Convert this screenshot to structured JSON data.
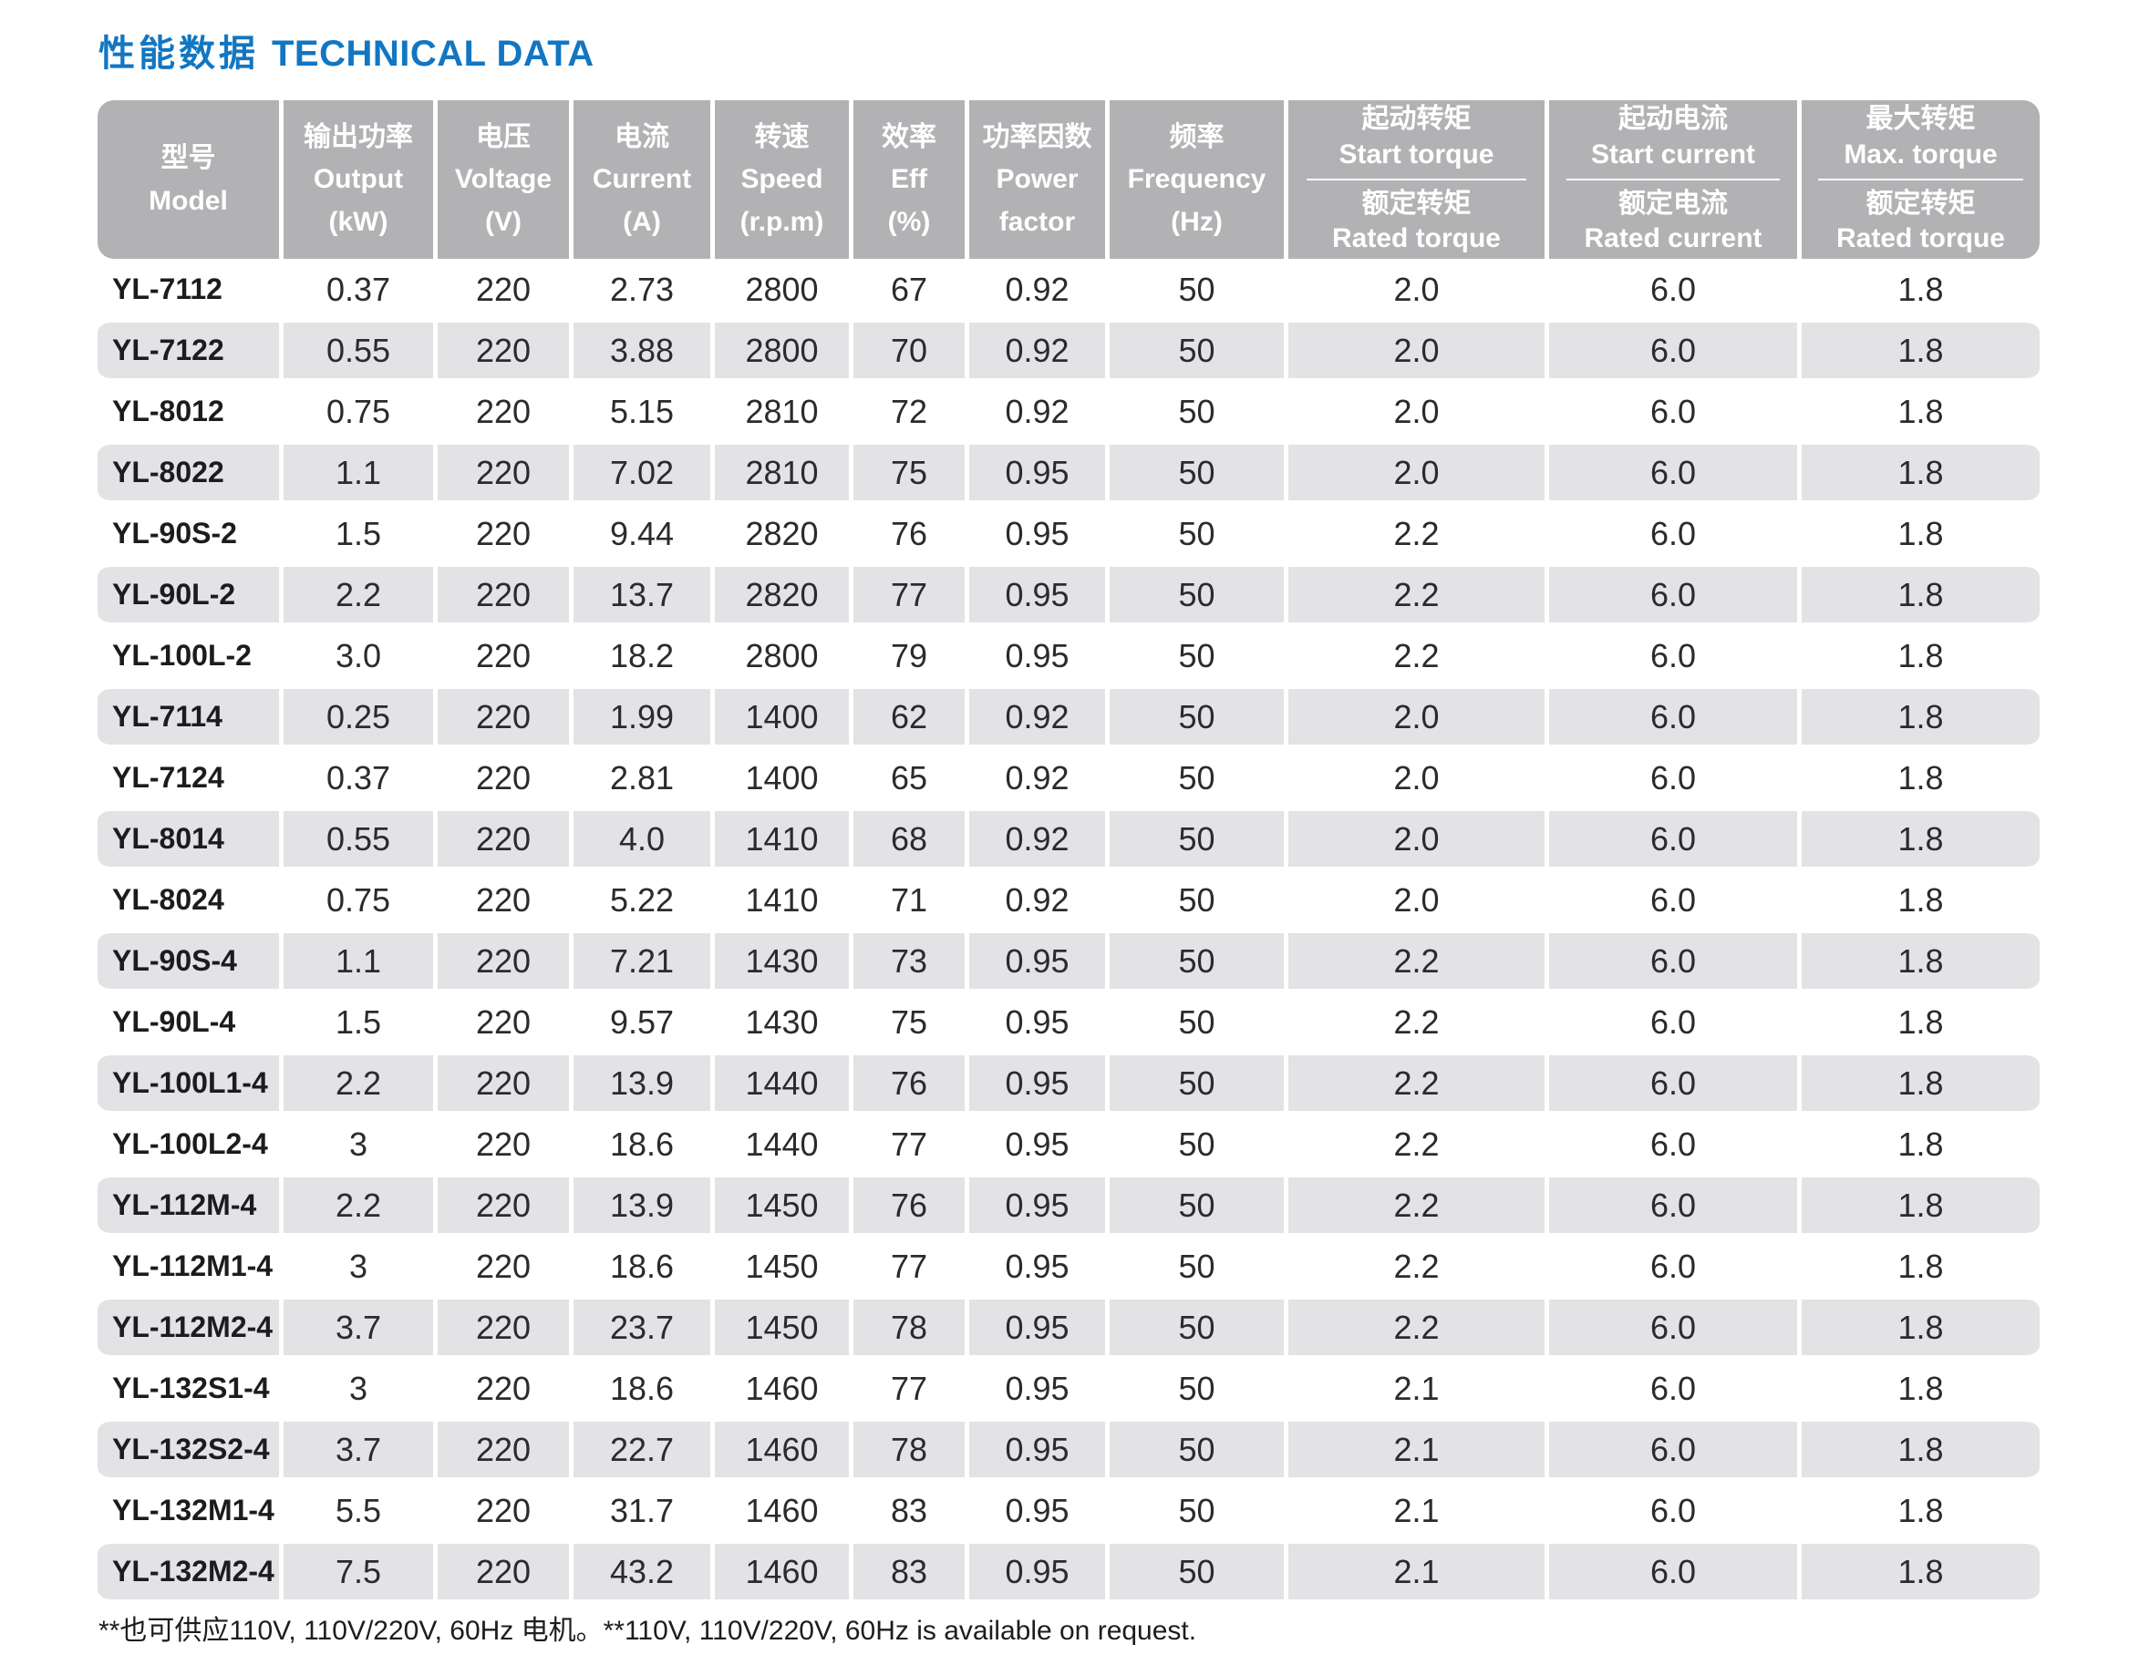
{
  "page_title": {
    "zh": "性能数据",
    "en": "TECHNICAL DATA"
  },
  "colors": {
    "accent_blue": "#1276c2",
    "header_gray": "#b2b2b5",
    "stripe_gray": "#e3e3e5"
  },
  "table": {
    "columns": [
      {
        "lines": [
          "型号",
          "Model"
        ]
      },
      {
        "lines": [
          "输出功率",
          "Output",
          "(kW)"
        ]
      },
      {
        "lines": [
          "电压",
          "Voltage",
          "(V)"
        ]
      },
      {
        "lines": [
          "电流",
          "Current",
          "(A)"
        ]
      },
      {
        "lines": [
          "转速",
          "Speed",
          "(r.p.m)"
        ]
      },
      {
        "lines": [
          "效率",
          "Eff",
          "(%)"
        ]
      },
      {
        "lines": [
          "功率因数",
          "Power",
          "factor"
        ]
      },
      {
        "lines": [
          "频率",
          "Frequency",
          "(Hz)"
        ]
      },
      {
        "top": [
          "起动转矩",
          "Start torque"
        ],
        "bottom": [
          "额定转矩",
          "Rated torque"
        ]
      },
      {
        "top": [
          "起动电流",
          "Start current"
        ],
        "bottom": [
          "额定电流",
          "Rated current"
        ]
      },
      {
        "top": [
          "最大转矩",
          "Max. torque"
        ],
        "bottom": [
          "额定转矩",
          "Rated torque"
        ]
      }
    ],
    "rows": [
      [
        "YL-7112",
        "0.37",
        "220",
        "2.73",
        "2800",
        "67",
        "0.92",
        "50",
        "2.0",
        "6.0",
        "1.8"
      ],
      [
        "YL-7122",
        "0.55",
        "220",
        "3.88",
        "2800",
        "70",
        "0.92",
        "50",
        "2.0",
        "6.0",
        "1.8"
      ],
      [
        "YL-8012",
        "0.75",
        "220",
        "5.15",
        "2810",
        "72",
        "0.92",
        "50",
        "2.0",
        "6.0",
        "1.8"
      ],
      [
        "YL-8022",
        "1.1",
        "220",
        "7.02",
        "2810",
        "75",
        "0.95",
        "50",
        "2.0",
        "6.0",
        "1.8"
      ],
      [
        "YL-90S-2",
        "1.5",
        "220",
        "9.44",
        "2820",
        "76",
        "0.95",
        "50",
        "2.2",
        "6.0",
        "1.8"
      ],
      [
        "YL-90L-2",
        "2.2",
        "220",
        "13.7",
        "2820",
        "77",
        "0.95",
        "50",
        "2.2",
        "6.0",
        "1.8"
      ],
      [
        "YL-100L-2",
        "3.0",
        "220",
        "18.2",
        "2800",
        "79",
        "0.95",
        "50",
        "2.2",
        "6.0",
        "1.8"
      ],
      [
        "YL-7114",
        "0.25",
        "220",
        "1.99",
        "1400",
        "62",
        "0.92",
        "50",
        "2.0",
        "6.0",
        "1.8"
      ],
      [
        "YL-7124",
        "0.37",
        "220",
        "2.81",
        "1400",
        "65",
        "0.92",
        "50",
        "2.0",
        "6.0",
        "1.8"
      ],
      [
        "YL-8014",
        "0.55",
        "220",
        "4.0",
        "1410",
        "68",
        "0.92",
        "50",
        "2.0",
        "6.0",
        "1.8"
      ],
      [
        "YL-8024",
        "0.75",
        "220",
        "5.22",
        "1410",
        "71",
        "0.92",
        "50",
        "2.0",
        "6.0",
        "1.8"
      ],
      [
        "YL-90S-4",
        "1.1",
        "220",
        "7.21",
        "1430",
        "73",
        "0.95",
        "50",
        "2.2",
        "6.0",
        "1.8"
      ],
      [
        "YL-90L-4",
        "1.5",
        "220",
        "9.57",
        "1430",
        "75",
        "0.95",
        "50",
        "2.2",
        "6.0",
        "1.8"
      ],
      [
        "YL-100L1-4",
        "2.2",
        "220",
        "13.9",
        "1440",
        "76",
        "0.95",
        "50",
        "2.2",
        "6.0",
        "1.8"
      ],
      [
        "YL-100L2-4",
        "3",
        "220",
        "18.6",
        "1440",
        "77",
        "0.95",
        "50",
        "2.2",
        "6.0",
        "1.8"
      ],
      [
        "YL-112M-4",
        "2.2",
        "220",
        "13.9",
        "1450",
        "76",
        "0.95",
        "50",
        "2.2",
        "6.0",
        "1.8"
      ],
      [
        "YL-112M1-4",
        "3",
        "220",
        "18.6",
        "1450",
        "77",
        "0.95",
        "50",
        "2.2",
        "6.0",
        "1.8"
      ],
      [
        "YL-112M2-4",
        "3.7",
        "220",
        "23.7",
        "1450",
        "78",
        "0.95",
        "50",
        "2.2",
        "6.0",
        "1.8"
      ],
      [
        "YL-132S1-4",
        "3",
        "220",
        "18.6",
        "1460",
        "77",
        "0.95",
        "50",
        "2.1",
        "6.0",
        "1.8"
      ],
      [
        "YL-132S2-4",
        "3.7",
        "220",
        "22.7",
        "1460",
        "78",
        "0.95",
        "50",
        "2.1",
        "6.0",
        "1.8"
      ],
      [
        "YL-132M1-4",
        "5.5",
        "220",
        "31.7",
        "1460",
        "83",
        "0.95",
        "50",
        "2.1",
        "6.0",
        "1.8"
      ],
      [
        "YL-132M2-4",
        "7.5",
        "220",
        "43.2",
        "1460",
        "83",
        "0.95",
        "50",
        "2.1",
        "6.0",
        "1.8"
      ]
    ]
  },
  "footnote": "**也可供应110V, 110V/220V, 60Hz 电机。**110V, 110V/220V, 60Hz is available on request."
}
